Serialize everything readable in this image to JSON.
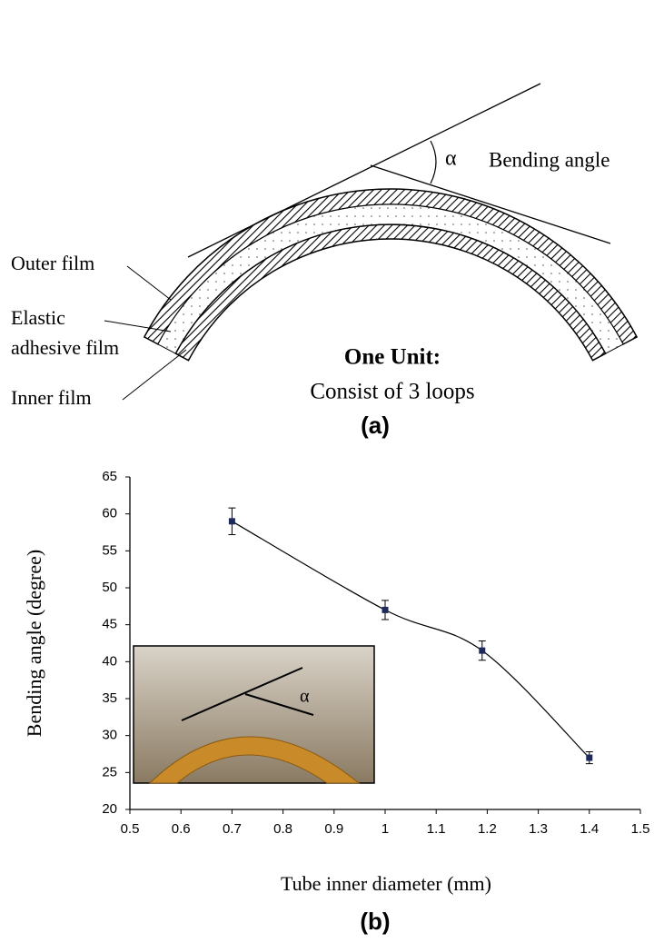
{
  "diagram": {
    "angle_symbol": "α",
    "angle_label": "Bending angle",
    "outer_film": "Outer film",
    "elastic_line1": "Elastic",
    "elastic_line2": "adhesive film",
    "inner_film": "Inner film",
    "unit_title": "One Unit:",
    "unit_text": "Consist of 3 loops",
    "caption": "(a)"
  },
  "chart_data": {
    "type": "line",
    "x_label": "Tube inner diameter (mm)",
    "y_label": "Bending angle (degree)",
    "caption": "(b)",
    "inset_label": "α",
    "x": [
      0.7,
      1,
      1.19,
      1.4
    ],
    "values": [
      59,
      47,
      41.5,
      27
    ],
    "errors": [
      1.8,
      1.3,
      1.3,
      0.8
    ],
    "color": "#1f2a5c",
    "xlim": [
      0.5,
      1.5
    ],
    "xticks": [
      0.5,
      0.6,
      0.7,
      0.8,
      0.9,
      1,
      1.1,
      1.2,
      1.3,
      1.4,
      1.5
    ],
    "ylim": [
      20,
      65
    ],
    "yticks": [
      20,
      25,
      30,
      35,
      40,
      45,
      50,
      55,
      60,
      65
    ]
  }
}
